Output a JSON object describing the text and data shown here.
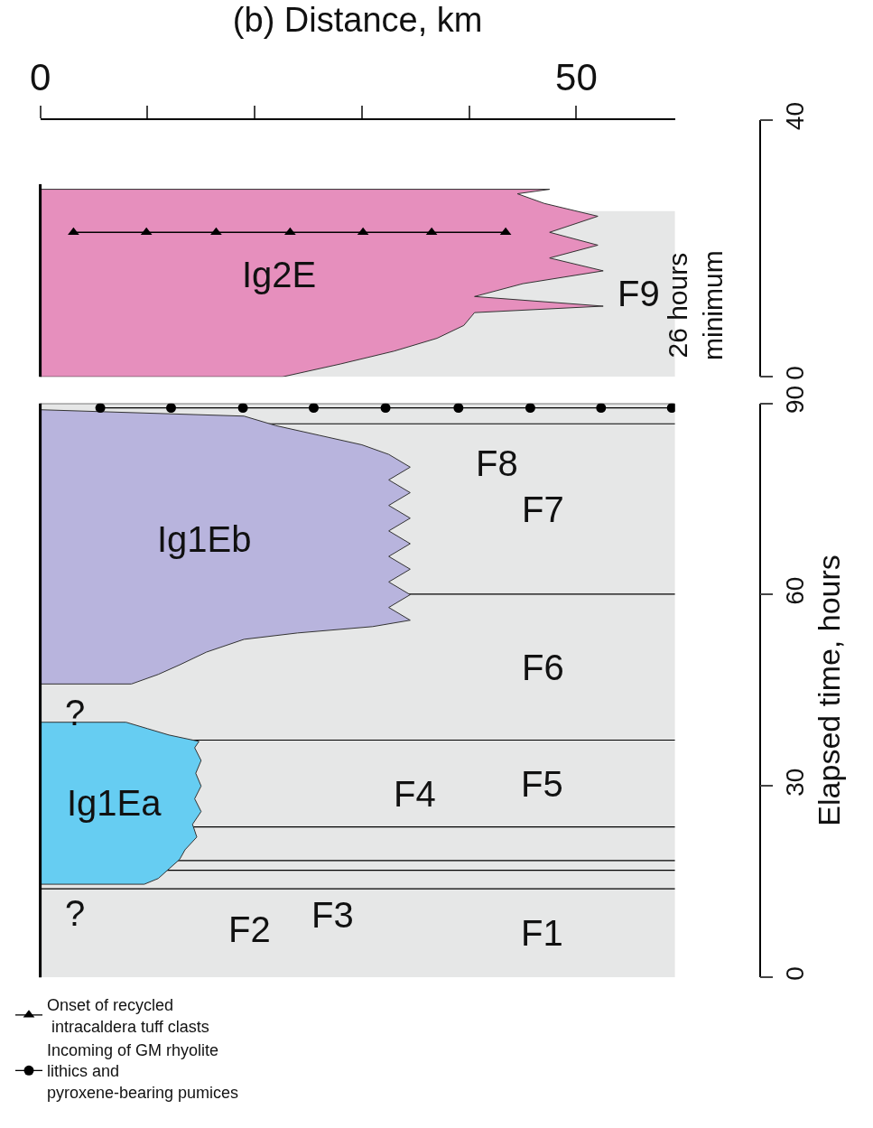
{
  "chart_data": [
    {
      "type": "area",
      "xlabel": "(b) Distance, km",
      "xlim": [
        0,
        59.2
      ],
      "xticks": [
        0,
        {
          "value": 10,
          "label": null
        },
        {
          "value": 20,
          "label": null
        },
        {
          "value": 30,
          "label": null
        },
        {
          "value": 40,
          "label": null
        },
        50
      ],
      "ylim": [
        0,
        40
      ],
      "yticks": [
        0,
        40
      ],
      "legend": "bottom left",
      "bands": [
        {
          "axis": "y",
          "from": 0,
          "to": 25.8,
          "color": "#e6e7e7",
          "label": "F9"
        }
      ],
      "series": [
        {
          "name": "Ig2E",
          "color": "#e68fbd",
          "x": [
            0,
            22.6,
            28,
            33,
            37,
            39.5,
            40.5,
            52.5,
            40.5,
            45,
            52.5,
            47.5,
            52,
            47.5,
            52,
            47,
            44.5,
            47.5,
            0
          ],
          "values": [
            0,
            0,
            2,
            4,
            6,
            8,
            10,
            11,
            12.5,
            14.5,
            16.5,
            18.5,
            20.5,
            22.5,
            25,
            27,
            28.5,
            29.2,
            29.2
          ]
        },
        {
          "type": "line",
          "name": "Onset of recycled\n intracaldera tuff clasts",
          "color": "#000000",
          "marker": "triangle",
          "x": [
            3.1,
            9.9,
            16.4,
            23.3,
            30.1,
            36.5,
            43.4
          ],
          "values": [
            22.5,
            22.5,
            22.5,
            22.5,
            22.5,
            22.5,
            22.5
          ]
        }
      ],
      "annotations": [
        "26 hours\nminimum"
      ]
    },
    {
      "type": "area",
      "ylabel": "Elapsed time, hours",
      "xlim": [
        0,
        59.2
      ],
      "ylim": [
        0,
        90
      ],
      "yticks": [
        0,
        30,
        60,
        90
      ],
      "tick_labels": "y",
      "legend": "bottom left",
      "bands": [
        {
          "axis": "y",
          "from": 0,
          "to": 13.9,
          "color": "#e6e7e7",
          "label": "F1"
        },
        {
          "axis": "y",
          "from": 13.9,
          "to": 16.8,
          "color": "#e6e7e7",
          "label": "F2"
        },
        {
          "axis": "y",
          "from": 16.8,
          "to": 18.3,
          "color": "#e6e7e7",
          "label": "F3"
        },
        {
          "axis": "y",
          "from": 18.3,
          "to": 23.6,
          "color": "#e6e7e7",
          "label": "F4"
        },
        {
          "axis": "y",
          "from": 23.6,
          "to": 37.2,
          "color": "#e6e7e7",
          "label": "F5"
        },
        {
          "axis": "y",
          "from": 37.2,
          "to": 60.1,
          "color": "#e6e7e7",
          "label": "F6"
        },
        {
          "axis": "y",
          "from": 60.1,
          "to": 86.8,
          "color": "#e6e7e7",
          "label": "F7"
        },
        {
          "axis": "y",
          "from": 86.8,
          "to": 90,
          "color": "#e6e7e7",
          "label": "F8"
        }
      ],
      "ref_lines": [
        {
          "axis": "y",
          "value": 13.9
        },
        {
          "axis": "y",
          "value": 16.8
        },
        {
          "axis": "y",
          "value": 18.3
        },
        {
          "axis": "y",
          "value": 23.6
        },
        {
          "axis": "y",
          "value": 37.2
        },
        {
          "axis": "y",
          "value": 60.1
        },
        {
          "axis": "y",
          "value": 86.8
        },
        {
          "axis": "y",
          "value": 90
        }
      ],
      "series": [
        {
          "name": "Ig1Ea",
          "color": "#66cdf2",
          "x": [
            0,
            9.7,
            11,
            12,
            13,
            13.5,
            14.6,
            14.2,
            15,
            14.4,
            15,
            14.5,
            15,
            14.4,
            14.8,
            12,
            10,
            8,
            0
          ],
          "values": [
            14.6,
            14.6,
            15.5,
            17,
            18.5,
            20,
            22,
            24,
            26,
            28,
            30,
            32,
            34,
            36,
            37,
            38,
            39,
            40,
            40
          ]
        },
        {
          "name": "Ig1Eb",
          "color": "#b8b4dd",
          "x": [
            0,
            8.5,
            11,
            13,
            15.5,
            19,
            24,
            31,
            34.5,
            32.5,
            34.5,
            32.5,
            34.5,
            32.5,
            34.5,
            32.5,
            34.5,
            32.5,
            34.5,
            32.5,
            34.5,
            32.5,
            30,
            26,
            22,
            19,
            0
          ],
          "values": [
            46,
            46,
            47.5,
            49,
            51,
            53,
            54,
            55,
            56,
            58,
            60,
            62,
            64,
            66,
            68,
            70,
            72,
            74,
            76,
            78,
            80,
            82,
            83.5,
            85,
            86.5,
            88,
            89
          ]
        },
        {
          "type": "line",
          "name": "Incoming of GM rhyolite\nlithics and\npyroxene-bearing pumices",
          "color": "#000000",
          "marker": "circle",
          "x": [
            5.6,
            12.2,
            18.9,
            25.5,
            32.2,
            39,
            45.7,
            52.3,
            58.9
          ],
          "values": [
            89.3,
            89.3,
            89.3,
            89.3,
            89.3,
            89.3,
            89.3,
            89.3,
            89.3
          ]
        }
      ],
      "annotations": [
        {
          "text": "?",
          "x": 0,
          "y": 46
        },
        {
          "text": "?",
          "x": 0,
          "y": 14.6
        }
      ]
    }
  ]
}
